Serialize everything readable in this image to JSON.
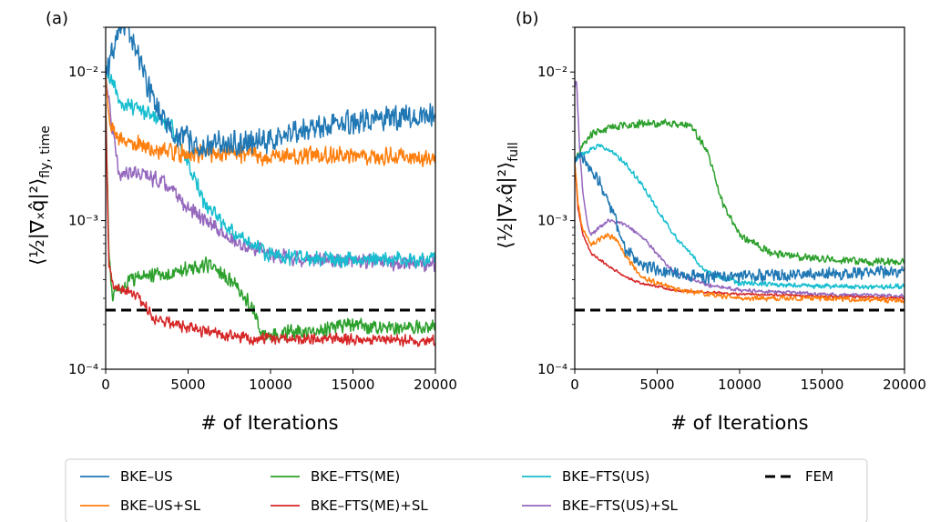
{
  "colors": {
    "BKE-US": "#1f77b4",
    "BKE-US+SL": "#ff7f0e",
    "BKE-FTS(ME)": "#2ca02c",
    "BKE-FTS(ME)+SL": "#d62728",
    "BKE-FTS(US)": "#17becf",
    "BKE-FTS(US)+SL": "#9467bd",
    "FEM": "#000000"
  },
  "legend": {
    "placement": "bottom-center",
    "entries": [
      "BKE–US",
      "BKE–US+SL",
      "BKE–FTS(ME)",
      "BKE–FTS(ME)+SL",
      "BKE–FTS(US)",
      "BKE–FTS(US)+SL",
      "FEM"
    ]
  },
  "chart_data": [
    {
      "type": "line",
      "panel_label": "(a)",
      "xlabel": "# of Iterations",
      "ylabel": "⟨½|∇ₓq̂|²⟩fly, time",
      "ylabel_main": "⟨½|∇ₓq̂|²⟩",
      "ylabel_sub": "fly, time",
      "xlim": [
        0,
        20000
      ],
      "ylim": [
        0.0001,
        0.02
      ],
      "yscale": "log",
      "xticks": [
        "0",
        "5000",
        "10000",
        "15000",
        "20000"
      ],
      "yticks": [
        "10⁻⁴",
        "10⁻³",
        "10⁻²"
      ],
      "grid": false,
      "series": [
        {
          "name": "BKE–US",
          "x": [
            0,
            500,
            1000,
            1500,
            2000,
            3000,
            4000,
            5000,
            6000,
            8000,
            10000,
            12000,
            14000,
            16000,
            18000,
            20000
          ],
          "y": [
            0.01,
            0.015,
            0.02,
            0.018,
            0.012,
            0.006,
            0.004,
            0.0035,
            0.0032,
            0.0033,
            0.0035,
            0.004,
            0.0045,
            0.0048,
            0.005,
            0.005
          ],
          "noise": 0.1
        },
        {
          "name": "BKE–US+SL",
          "x": [
            0,
            300,
            1000,
            2000,
            3000,
            5000,
            8000,
            10000,
            14000,
            17000,
            20000
          ],
          "y": [
            0.009,
            0.0045,
            0.0033,
            0.0033,
            0.003,
            0.0028,
            0.0028,
            0.0027,
            0.0028,
            0.0027,
            0.0026
          ],
          "noise": 0.07
        },
        {
          "name": "BKE–FTS(ME)",
          "x": [
            0,
            100,
            200,
            400,
            800,
            2000,
            4000,
            6000,
            7000,
            8000,
            9000,
            9500,
            10000,
            12000,
            15000,
            17000,
            20000
          ],
          "y": [
            0.006,
            0.002,
            0.0006,
            0.0003,
            0.00035,
            0.00042,
            0.00045,
            0.0005,
            0.00045,
            0.00035,
            0.00025,
            0.00017,
            0.00017,
            0.00018,
            0.0002,
            0.00019,
            0.00019
          ],
          "noise": 0.06
        },
        {
          "name": "BKE–FTS(ME)+SL",
          "x": [
            0,
            100,
            200,
            500,
            1000,
            2000,
            3000,
            5000,
            7000,
            9000,
            12000,
            15000,
            20000
          ],
          "y": [
            0.006,
            0.0015,
            0.0005,
            0.00036,
            0.00035,
            0.0003,
            0.00022,
            0.00019,
            0.00017,
            0.00016,
            0.00016,
            0.00016,
            0.000155
          ],
          "noise": 0.045
        },
        {
          "name": "BKE–FTS(US)",
          "x": [
            0,
            500,
            1000,
            2000,
            3000,
            4000,
            5000,
            5500,
            6000,
            8000,
            10000,
            12000,
            15000,
            20000
          ],
          "y": [
            0.01,
            0.008,
            0.006,
            0.0055,
            0.005,
            0.0042,
            0.0025,
            0.0018,
            0.0013,
            0.0008,
            0.00058,
            0.00056,
            0.00055,
            0.00055
          ],
          "noise": 0.06
        },
        {
          "name": "BKE–FTS(US)+SL",
          "x": [
            0,
            300,
            800,
            1500,
            2500,
            3500,
            4500,
            5000,
            6000,
            8000,
            10000,
            12000,
            15000,
            20000
          ],
          "y": [
            0.01,
            0.005,
            0.002,
            0.0022,
            0.002,
            0.0018,
            0.0014,
            0.0012,
            0.001,
            0.0007,
            0.0006,
            0.00055,
            0.00054,
            0.0005
          ],
          "noise": 0.06
        },
        {
          "name": "FEM",
          "x": [
            0,
            20000
          ],
          "y": [
            0.00025,
            0.00025
          ],
          "noise": 0
        }
      ]
    },
    {
      "type": "line",
      "panel_label": "(b)",
      "xlabel": "# of Iterations",
      "ylabel": "⟨½|∇ₓq̂|²⟩full",
      "ylabel_main": "⟨½|∇ₓq̂|²⟩",
      "ylabel_sub": "full",
      "xlim": [
        0,
        20000
      ],
      "ylim": [
        0.0001,
        0.02
      ],
      "yscale": "log",
      "xticks": [
        "0",
        "5000",
        "10000",
        "15000",
        "20000"
      ],
      "yticks": [
        "10⁻⁴",
        "10⁻³",
        "10⁻²"
      ],
      "grid": false,
      "series": [
        {
          "name": "BKE–US",
          "x": [
            0,
            200,
            500,
            1000,
            1500,
            2000,
            2500,
            3000,
            4000,
            6000,
            8000,
            10000,
            12000,
            15000,
            18000,
            20000
          ],
          "y": [
            0.0025,
            0.003,
            0.0026,
            0.0022,
            0.0018,
            0.0014,
            0.001,
            0.00065,
            0.0005,
            0.00045,
            0.00042,
            0.00042,
            0.00043,
            0.00044,
            0.00045,
            0.00045
          ],
          "noise": 0.05
        },
        {
          "name": "BKE–US+SL",
          "x": [
            0,
            200,
            500,
            1000,
            1500,
            2000,
            2500,
            3000,
            4000,
            6000,
            8000,
            10000,
            15000,
            20000
          ],
          "y": [
            0.0025,
            0.0013,
            0.00085,
            0.0007,
            0.00075,
            0.0008,
            0.00075,
            0.0006,
            0.00042,
            0.00035,
            0.00032,
            0.0003,
            0.0003,
            0.00029
          ],
          "noise": 0.02
        },
        {
          "name": "BKE–FTS(ME)",
          "x": [
            0,
            200,
            500,
            1000,
            2000,
            3000,
            4000,
            5000,
            6000,
            7000,
            8000,
            9000,
            10000,
            12000,
            15000,
            20000
          ],
          "y": [
            0.0025,
            0.0028,
            0.0032,
            0.0038,
            0.0042,
            0.0044,
            0.0045,
            0.0045,
            0.0045,
            0.0044,
            0.003,
            0.0013,
            0.0008,
            0.0006,
            0.00055,
            0.00052
          ],
          "noise": 0.03
        },
        {
          "name": "BKE–FTS(ME)+SL",
          "x": [
            0,
            200,
            500,
            1000,
            2000,
            3000,
            4000,
            6000,
            8000,
            10000,
            15000,
            20000
          ],
          "y": [
            0.0025,
            0.0012,
            0.0008,
            0.0006,
            0.0005,
            0.00042,
            0.00038,
            0.00034,
            0.00033,
            0.00032,
            0.00031,
            0.0003
          ],
          "noise": 0.01
        },
        {
          "name": "BKE–FTS(US)",
          "x": [
            0,
            200,
            500,
            1000,
            1500,
            2000,
            3000,
            4000,
            5000,
            6000,
            7000,
            8000,
            10000,
            15000,
            20000
          ],
          "y": [
            0.0025,
            0.0026,
            0.0028,
            0.003,
            0.0032,
            0.003,
            0.0025,
            0.0018,
            0.0012,
            0.0008,
            0.0006,
            0.00045,
            0.00038,
            0.00036,
            0.00036
          ],
          "noise": 0.02
        },
        {
          "name": "BKE–FTS(US)+SL",
          "x": [
            0,
            100,
            300,
            500,
            800,
            1000,
            1500,
            2000,
            3000,
            4000,
            5000,
            6000,
            8000,
            10000,
            15000,
            20000
          ],
          "y": [
            0.008,
            0.009,
            0.003,
            0.0015,
            0.0009,
            0.0008,
            0.0009,
            0.001,
            0.00095,
            0.0008,
            0.0006,
            0.00045,
            0.00037,
            0.00034,
            0.00032,
            0.00031
          ],
          "noise": 0.015
        },
        {
          "name": "FEM",
          "x": [
            0,
            20000
          ],
          "y": [
            0.00025,
            0.00025
          ],
          "noise": 0
        }
      ]
    }
  ]
}
